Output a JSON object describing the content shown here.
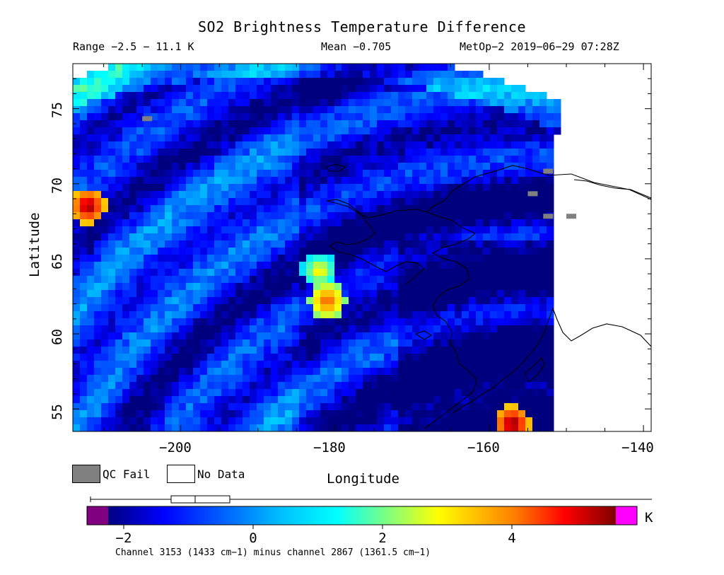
{
  "title": "SO2 Brightness Temperature Difference",
  "stats": {
    "range": "Range −2.5 − 11.1 K",
    "mean": "Mean −0.705",
    "satellite_time": "MetOp−2 2019−06−29 07:28Z"
  },
  "axes": {
    "xlabel": "Longitude",
    "ylabel": "Latitude",
    "xticks": [
      "−200",
      "−180",
      "−160",
      "−140"
    ],
    "yticks": [
      "55",
      "60",
      "65",
      "70",
      "75"
    ]
  },
  "legend": {
    "qc_fail": "QC Fail",
    "no_data": "No Data",
    "qc_fail_color": "#808080",
    "no_data_color": "#ffffff"
  },
  "colorbar": {
    "ticks": [
      "−2",
      "0",
      "2",
      "4"
    ],
    "unit": "K",
    "under_color": "#800080",
    "over_color": "#ff00ff"
  },
  "footnote": "Channel 3153 (1433 cm−1) minus channel 2867 (1361.5 cm−1)",
  "map_data": {
    "lon_range": [
      -214,
      -139
    ],
    "lat_range": [
      53.5,
      78
    ],
    "value_range": [
      -2.5,
      5.6
    ],
    "hotspots": [
      {
        "lon": -181,
        "lat": 62.2,
        "value": 4.5
      },
      {
        "lon": -182,
        "lat": 64.2,
        "value": 3.2
      },
      {
        "lon": -157,
        "lat": 54.0,
        "value": 5.8
      },
      {
        "lon": -212,
        "lat": 68.5,
        "value": 5.7
      }
    ],
    "background_mean": -0.705
  }
}
